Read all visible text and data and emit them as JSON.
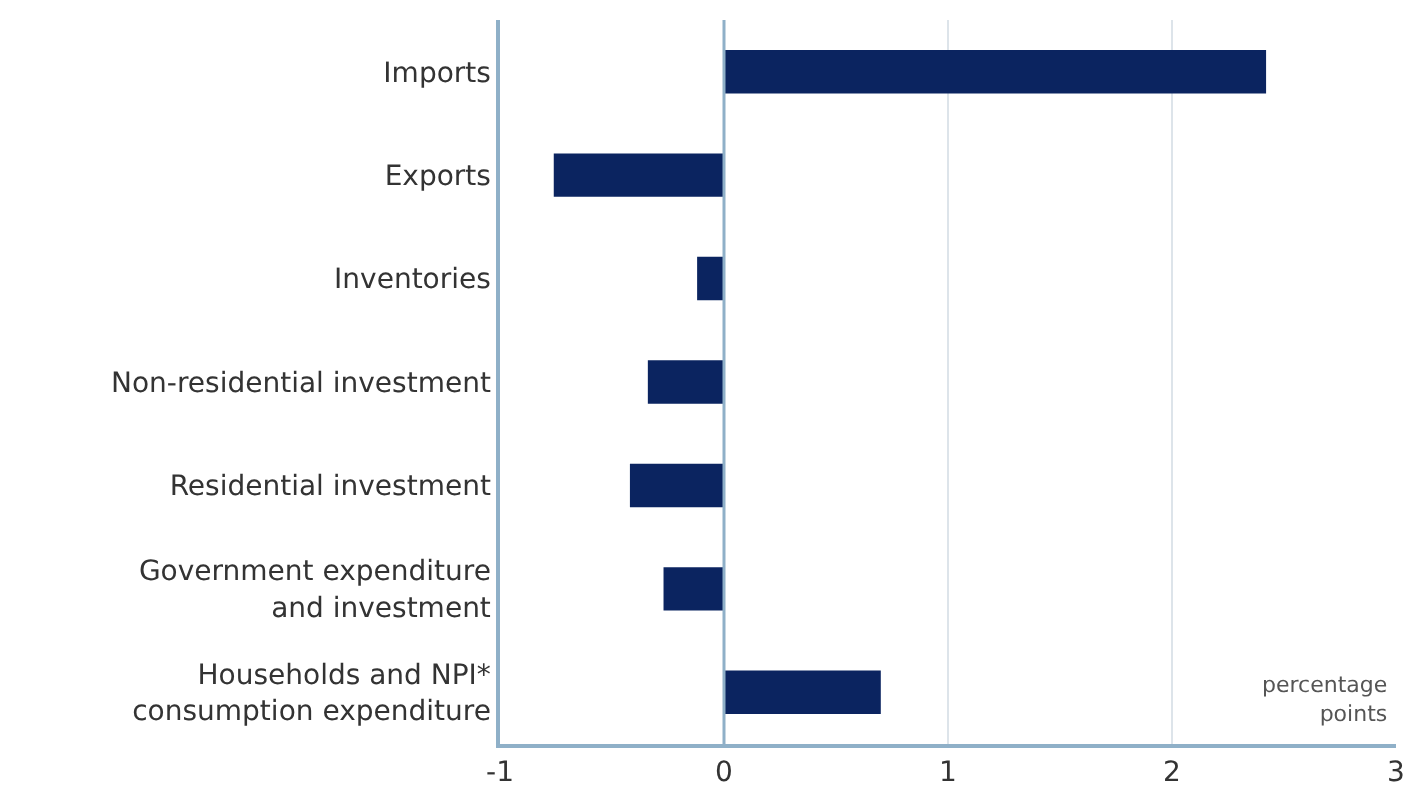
{
  "chart_data": {
    "type": "bar",
    "orientation": "horizontal",
    "categories": [
      "Imports",
      "Exports",
      "Inventories",
      "Non-residential investment",
      "Residential investment",
      "Government expenditure\nand investment",
      "Households and NPI*\nconsumption expenditure"
    ],
    "values": [
      2.42,
      -0.76,
      -0.12,
      -0.34,
      -0.42,
      -0.27,
      0.7
    ],
    "color": "#0b2460",
    "ref_lines": [
      {
        "axis": "x",
        "value": 0,
        "color": "#8fb0c8"
      }
    ],
    "xlim": [
      -1,
      3
    ],
    "xticks": [
      -1,
      0,
      1,
      2,
      3
    ],
    "grid": "x",
    "annotations": [
      "percentage\npoints"
    ]
  }
}
